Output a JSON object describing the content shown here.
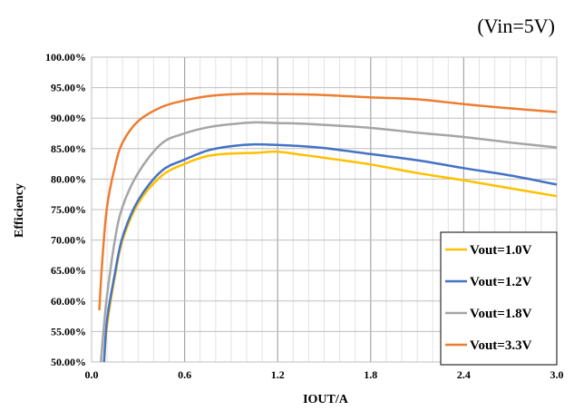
{
  "annotation": "(Vin=5V)",
  "chart_data": {
    "type": "line",
    "xlabel": "IOUT/A",
    "ylabel": "Efficiency",
    "xlim": [
      0,
      3.0
    ],
    "ylim": [
      50,
      100
    ],
    "x_ticks": [
      "0.0",
      "0.6",
      "1.2",
      "1.8",
      "2.4",
      "3.0"
    ],
    "y_ticks": [
      "50.00%",
      "55.00%",
      "60.00%",
      "65.00%",
      "70.00%",
      "75.00%",
      "80.00%",
      "85.00%",
      "90.00%",
      "95.00%",
      "100.00%"
    ],
    "grid": true,
    "legend_position": "bottom-right",
    "series": [
      {
        "name": "Vout=1.0V",
        "color": "#FFC000",
        "x": [
          0.08,
          0.1,
          0.15,
          0.2,
          0.3,
          0.45,
          0.6,
          0.75,
          0.9,
          1.05,
          1.2,
          1.35,
          1.5,
          1.8,
          2.1,
          2.4,
          2.7,
          3.0
        ],
        "y": [
          50,
          56,
          64,
          70,
          76,
          80.5,
          82.5,
          83.8,
          84.2,
          84.3,
          84.5,
          84,
          83.5,
          82.4,
          81,
          79.8,
          78.5,
          77.2
        ]
      },
      {
        "name": "Vout=1.2V",
        "color": "#4472C4",
        "x": [
          0.08,
          0.1,
          0.15,
          0.2,
          0.3,
          0.45,
          0.6,
          0.75,
          0.9,
          1.05,
          1.2,
          1.35,
          1.5,
          1.8,
          2.1,
          2.4,
          2.7,
          3.0
        ],
        "y": [
          50,
          57,
          64.5,
          70.5,
          76.5,
          81.3,
          83.2,
          84.7,
          85.4,
          85.7,
          85.6,
          85.4,
          85.1,
          84.1,
          83.1,
          81.8,
          80.6,
          79.1
        ]
      },
      {
        "name": "Vout=1.8V",
        "color": "#A5A5A5",
        "x": [
          0.06,
          0.08,
          0.1,
          0.15,
          0.2,
          0.3,
          0.45,
          0.6,
          0.75,
          0.9,
          1.05,
          1.2,
          1.35,
          1.5,
          1.8,
          2.1,
          2.4,
          2.7,
          3.0
        ],
        "y": [
          50,
          56,
          61,
          70,
          75.5,
          81,
          85.8,
          87.5,
          88.5,
          89,
          89.3,
          89.2,
          89.1,
          88.9,
          88.4,
          87.6,
          86.9,
          86,
          85.2
        ]
      },
      {
        "name": "Vout=3.3V",
        "color": "#ED7D31",
        "x": [
          0.05,
          0.07,
          0.1,
          0.15,
          0.2,
          0.3,
          0.45,
          0.6,
          0.75,
          0.9,
          1.05,
          1.2,
          1.35,
          1.5,
          1.8,
          2.1,
          2.4,
          2.7,
          3.0
        ],
        "y": [
          58.5,
          67,
          75.5,
          82,
          86,
          89.5,
          91.8,
          92.9,
          93.6,
          93.9,
          94,
          93.95,
          93.9,
          93.8,
          93.4,
          93.1,
          92.3,
          91.6,
          91
        ]
      }
    ]
  }
}
